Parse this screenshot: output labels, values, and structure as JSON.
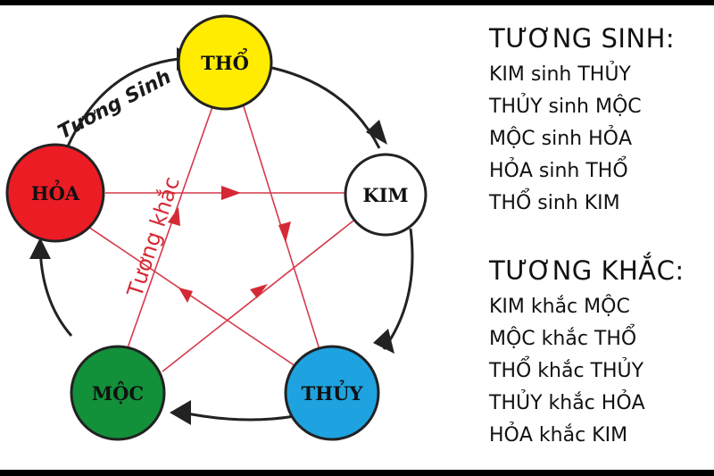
{
  "colors": {
    "tho": "#ffec00",
    "kim": "#ffffff",
    "thuy": "#1ea2e0",
    "moc": "#13903a",
    "hoa": "#ec1c24",
    "sinh_arrow": "#222222",
    "khac_line": "#d63a4a",
    "khac_label": "#d42a36"
  },
  "nodes": {
    "tho": "THỔ",
    "kim": "KIM",
    "thuy": "THỦY",
    "moc": "MỘC",
    "hoa": "HỎA"
  },
  "diagram": {
    "sinh_label": "Tương Sinh",
    "khac_label": "Tương khắc"
  },
  "sinh_panel": {
    "title": "TƯƠNG SINH:",
    "items": [
      "KIM sinh THỦY",
      "THỦY sinh MỘC",
      "MỘC sinh HỎA",
      "HỎA sinh THỔ",
      "THỔ sinh KIM"
    ]
  },
  "khac_panel": {
    "title": "TƯƠNG KHẮC:",
    "items": [
      "KIM khắc MỘC",
      "MỘC khắc THỔ",
      "THỔ khắc THỦY",
      "THỦY khắc HỎA",
      "HỎA khắc KIM"
    ]
  }
}
